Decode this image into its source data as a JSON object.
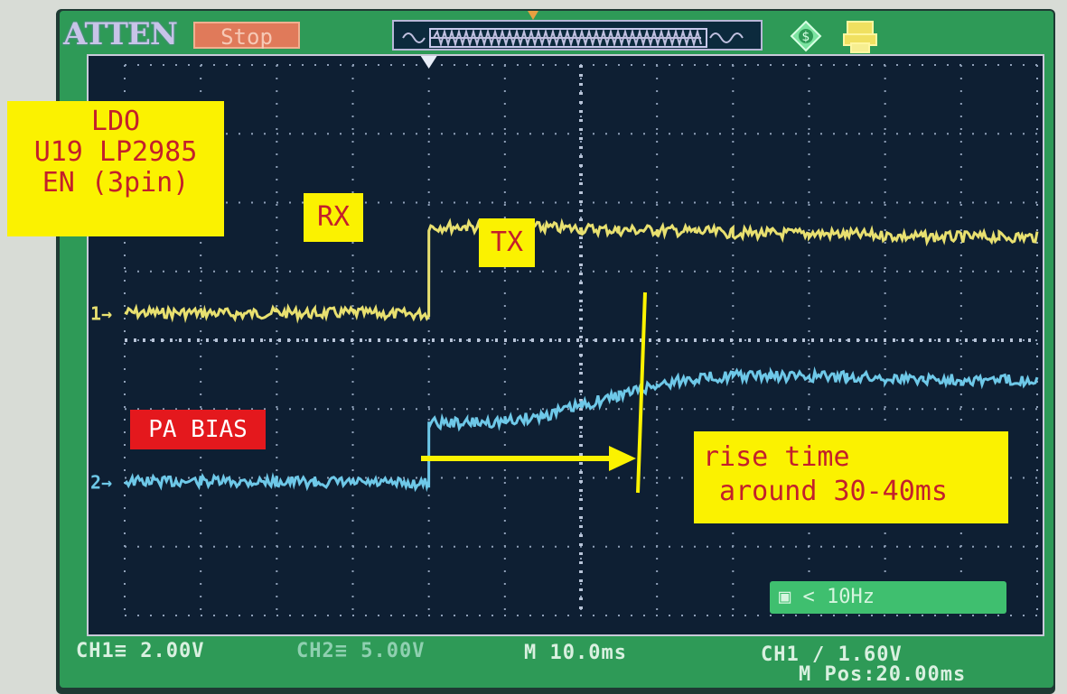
{
  "scope": {
    "brand": "ATTEN",
    "status": "Stop"
  },
  "readouts": {
    "ch1_scale": "CH1≡ 2.00V",
    "ch2_scale": "CH2≡ 5.00V",
    "timebase": "M 10.0ms",
    "trigger_level": "CH1 ∕ 1.60V",
    "position": "M Pos:20.00ms",
    "trigger_freq": "▣ < 10Hz"
  },
  "markers": {
    "ch1": "1→",
    "ch2": "2→"
  },
  "annotations": {
    "ldo": "LDO\nU19 LP2985\nEN (3pin)",
    "rx": "RX",
    "tx": "TX",
    "pa_bias": "PA BIAS",
    "rise_time": "rise time\n around 30-40ms"
  },
  "colors": {
    "ch1_trace": "#e8e070",
    "ch2_trace": "#6ec8e8",
    "grid": "#8fa0b8",
    "annotation_yellow": "#fbf200",
    "annotation_red": "#e4181d"
  },
  "chart_data": {
    "type": "line",
    "xlabel": "",
    "ylabel": "",
    "series": [
      {
        "name": "CH1",
        "x_div": [
          0,
          0.5,
          1,
          1.5,
          2,
          2.5,
          3,
          3.5,
          3.999,
          4.0,
          4.5,
          5,
          5.5,
          6,
          6.5,
          7,
          7.5,
          8,
          8.5,
          9,
          9.5,
          10,
          10.5,
          11,
          11.5,
          12
        ],
        "y_div": [
          0.4,
          0.4,
          0.4,
          0.38,
          0.4,
          0.39,
          0.4,
          0.38,
          0.38,
          1.65,
          1.65,
          1.64,
          1.64,
          1.62,
          1.6,
          1.6,
          1.58,
          1.56,
          1.55,
          1.55,
          1.54,
          1.52,
          1.5,
          1.5,
          1.5,
          1.5
        ]
      },
      {
        "name": "CH2",
        "x_div": [
          0,
          0.5,
          1,
          1.5,
          2,
          2.5,
          3,
          3.5,
          3.999,
          4.0,
          4.5,
          5,
          5.5,
          6,
          6.5,
          7,
          7.5,
          8,
          8.5,
          9,
          9.5,
          10,
          10.5,
          11,
          11.5,
          12
        ],
        "y_div": [
          -2.05,
          -2.05,
          -2.05,
          -2.06,
          -2.05,
          -2.06,
          -2.07,
          -2.08,
          -2.08,
          -1.2,
          -1.2,
          -1.18,
          -1.1,
          -0.95,
          -0.8,
          -0.65,
          -0.55,
          -0.52,
          -0.52,
          -0.53,
          -0.53,
          -0.55,
          -0.56,
          -0.57,
          -0.58,
          -0.58
        ]
      }
    ]
  }
}
